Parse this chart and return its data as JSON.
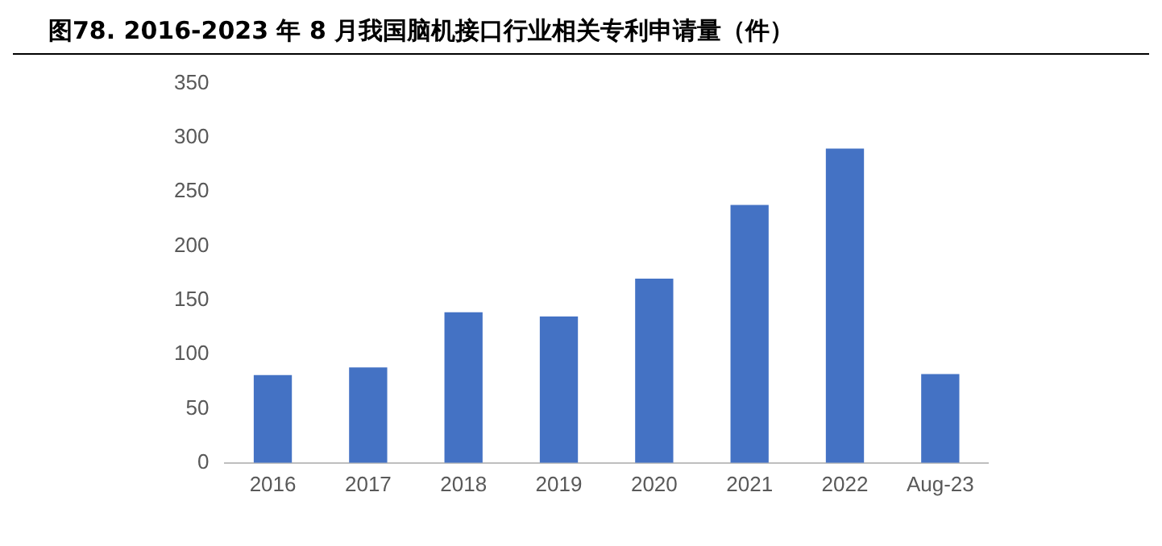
{
  "chart_data": {
    "type": "bar",
    "title": "图78. 2016-2023 年 8 月我国脑机接口行业相关专利申请量（件）",
    "categories": [
      "2016",
      "2017",
      "2018",
      "2019",
      "2020",
      "2021",
      "2022",
      "Aug-23"
    ],
    "values": [
      81,
      88,
      139,
      135,
      170,
      238,
      290,
      82
    ],
    "color": "#4472c4",
    "ylim": [
      0,
      350
    ],
    "yticks": [
      0,
      50,
      100,
      150,
      200,
      250,
      300,
      350
    ],
    "grid": false,
    "legend": false
  }
}
